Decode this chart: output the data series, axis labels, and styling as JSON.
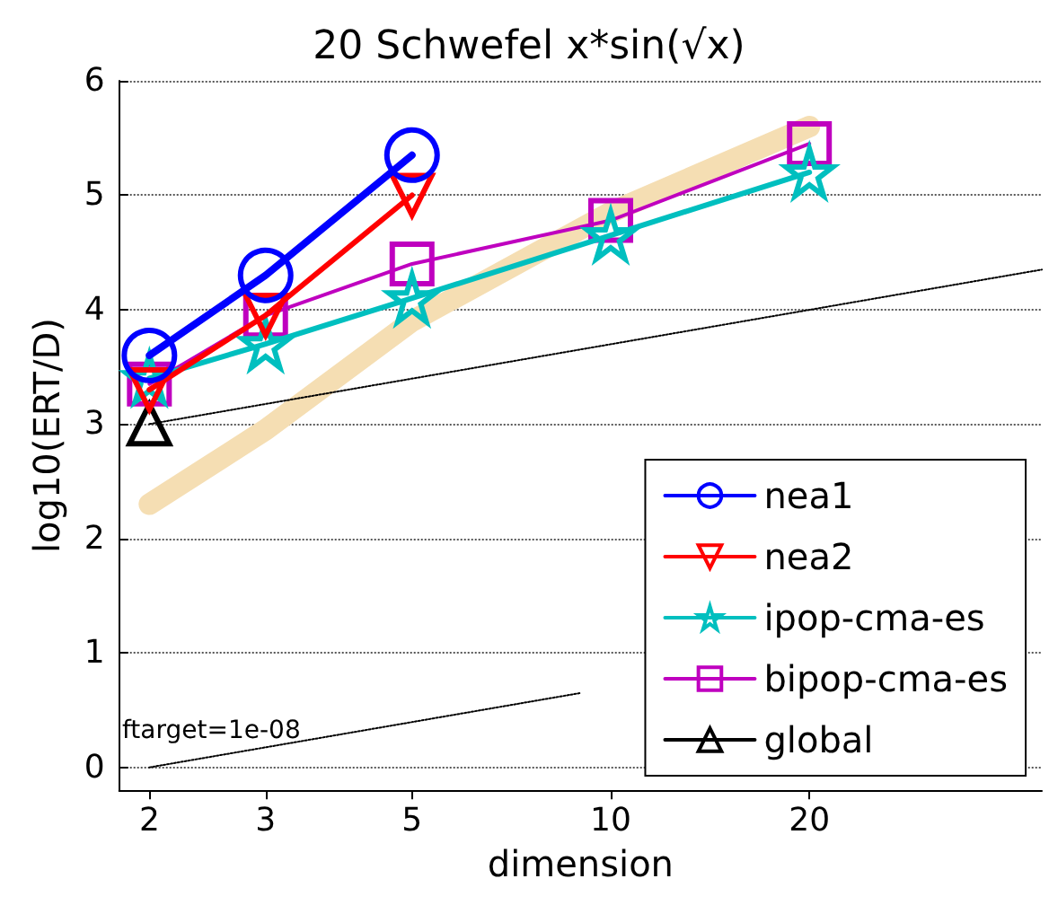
{
  "chart_data": {
    "type": "line",
    "title": "20 Schwefel x*sin(√x)",
    "xlabel": "dimension",
    "ylabel": "log10(ERT/D)",
    "log": "x",
    "xlim": [
      1.8,
      45
    ],
    "xticks": [
      2,
      3,
      5,
      10,
      20
    ],
    "ylim": [
      -0.2,
      6
    ],
    "yticks": [
      0,
      1,
      2,
      3,
      4,
      5,
      6
    ],
    "grid": "y",
    "legend": "bottom right",
    "annotations": [
      "ftarget=1e-08"
    ],
    "series": [
      {
        "color": "#f5deb3",
        "x": [
          2,
          3,
          5,
          10,
          20
        ],
        "values": [
          2.3,
          2.95,
          3.9,
          4.85,
          5.6
        ],
        "marker": "none"
      },
      {
        "color": "#000000",
        "x": [
          2,
          45
        ],
        "values": [
          3,
          4.35
        ],
        "marker": "none",
        "line_style": "dotted"
      },
      {
        "color": "#000000",
        "x": [
          2,
          9
        ],
        "values": [
          0,
          0.65
        ],
        "marker": "none",
        "line_style": "dotted"
      },
      {
        "name": "nea1",
        "color": "#0000ff",
        "x": [
          2,
          3,
          5
        ],
        "values": [
          3.6,
          4.3,
          5.35
        ],
        "marker": "circle"
      },
      {
        "name": "nea2",
        "color": "#ff0000",
        "x": [
          2,
          3,
          5
        ],
        "values": [
          3.3,
          3.95,
          5.0
        ],
        "marker": "triangle-down"
      },
      {
        "name": "ipop-cma-es",
        "color": "#00bfbf",
        "x": [
          2,
          3,
          5,
          10,
          20
        ],
        "values": [
          3.4,
          3.7,
          4.1,
          4.65,
          5.2
        ],
        "marker": "star"
      },
      {
        "name": "bipop-cma-es",
        "color": "#bf00bf",
        "x": [
          2,
          3,
          5,
          10,
          20
        ],
        "values": [
          3.35,
          3.95,
          4.4,
          4.78,
          5.45
        ],
        "marker": "square"
      },
      {
        "name": "global",
        "color": "#000000",
        "x": [
          2
        ],
        "values": [
          3.0
        ],
        "marker": "triangle"
      }
    ]
  }
}
